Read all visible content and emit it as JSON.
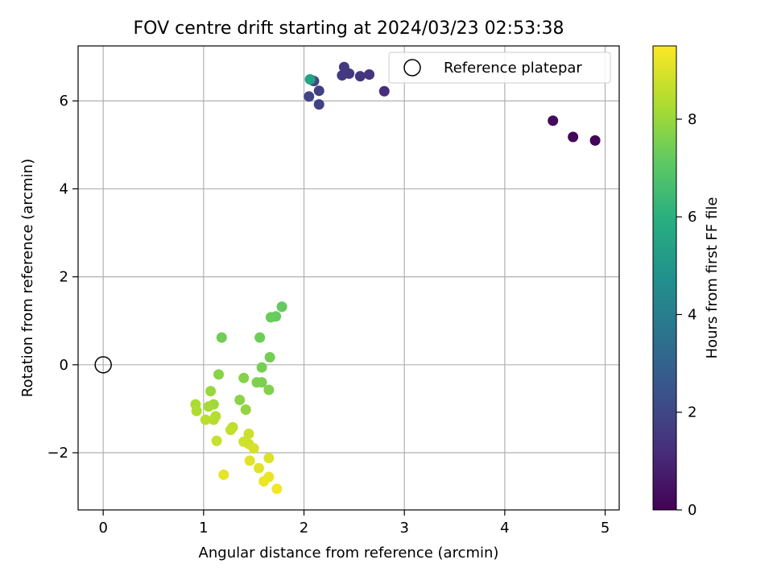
{
  "chart_data": {
    "type": "scatter",
    "title": "FOV centre drift starting at 2024/03/23 02:53:38",
    "xlabel": "Angular distance from reference (arcmin)",
    "ylabel": "Rotation from reference (arcmin)",
    "xlim": [
      -0.25,
      5.14
    ],
    "ylim": [
      -3.3,
      7.25
    ],
    "xticks": [
      0,
      1,
      2,
      3,
      4,
      5
    ],
    "yticks": [
      -2,
      0,
      2,
      4,
      6
    ],
    "grid": true,
    "legend": {
      "position": "top-right",
      "entries": [
        "Reference platepar"
      ]
    },
    "reference": {
      "x": 0,
      "y": 0
    },
    "colorbar": {
      "label": "Hours from first FF file",
      "min": 0,
      "max": 9.5,
      "ticks": [
        0,
        2,
        4,
        6,
        8
      ],
      "colormap": "viridis"
    },
    "points": [
      {
        "x": 4.9,
        "y": 5.1,
        "h": 0.05
      },
      {
        "x": 4.68,
        "y": 5.18,
        "h": 0.15
      },
      {
        "x": 4.48,
        "y": 5.55,
        "h": 0.25
      },
      {
        "x": 2.8,
        "y": 6.22,
        "h": 1.2
      },
      {
        "x": 2.65,
        "y": 6.6,
        "h": 1.4
      },
      {
        "x": 2.56,
        "y": 6.56,
        "h": 1.45
      },
      {
        "x": 2.45,
        "y": 6.62,
        "h": 1.55
      },
      {
        "x": 2.4,
        "y": 6.77,
        "h": 1.6
      },
      {
        "x": 2.38,
        "y": 6.58,
        "h": 1.65
      },
      {
        "x": 2.15,
        "y": 6.23,
        "h": 1.8
      },
      {
        "x": 2.15,
        "y": 5.92,
        "h": 1.85
      },
      {
        "x": 2.05,
        "y": 6.1,
        "h": 1.9
      },
      {
        "x": 2.1,
        "y": 6.45,
        "h": 1.95
      },
      {
        "x": 2.08,
        "y": 6.47,
        "h": 2.2
      },
      {
        "x": 2.06,
        "y": 6.49,
        "h": 5.5
      },
      {
        "x": 1.78,
        "y": 1.32,
        "h": 7.2
      },
      {
        "x": 1.72,
        "y": 1.1,
        "h": 7.25
      },
      {
        "x": 1.67,
        "y": 1.08,
        "h": 7.3
      },
      {
        "x": 1.18,
        "y": 0.62,
        "h": 7.4
      },
      {
        "x": 1.56,
        "y": 0.62,
        "h": 7.35
      },
      {
        "x": 1.66,
        "y": 0.17,
        "h": 7.45
      },
      {
        "x": 1.58,
        "y": -0.06,
        "h": 7.5
      },
      {
        "x": 1.58,
        "y": -0.4,
        "h": 7.55
      },
      {
        "x": 1.53,
        "y": -0.4,
        "h": 7.6
      },
      {
        "x": 1.65,
        "y": -0.57,
        "h": 7.65
      },
      {
        "x": 1.4,
        "y": -0.3,
        "h": 7.7
      },
      {
        "x": 1.15,
        "y": -0.22,
        "h": 7.75
      },
      {
        "x": 1.36,
        "y": -0.8,
        "h": 7.8
      },
      {
        "x": 1.42,
        "y": -1.02,
        "h": 7.9
      },
      {
        "x": 1.07,
        "y": -0.6,
        "h": 8.0
      },
      {
        "x": 1.1,
        "y": -0.9,
        "h": 8.1
      },
      {
        "x": 1.05,
        "y": -0.95,
        "h": 8.2
      },
      {
        "x": 0.92,
        "y": -0.9,
        "h": 8.3
      },
      {
        "x": 0.93,
        "y": -1.05,
        "h": 8.35
      },
      {
        "x": 1.12,
        "y": -1.17,
        "h": 8.4
      },
      {
        "x": 1.1,
        "y": -1.25,
        "h": 8.45
      },
      {
        "x": 1.02,
        "y": -1.25,
        "h": 8.5
      },
      {
        "x": 1.29,
        "y": -1.42,
        "h": 8.55
      },
      {
        "x": 1.27,
        "y": -1.48,
        "h": 8.6
      },
      {
        "x": 1.13,
        "y": -1.73,
        "h": 8.7
      },
      {
        "x": 1.45,
        "y": -1.57,
        "h": 8.75
      },
      {
        "x": 1.4,
        "y": -1.75,
        "h": 8.8
      },
      {
        "x": 1.45,
        "y": -1.8,
        "h": 8.85
      },
      {
        "x": 1.5,
        "y": -1.9,
        "h": 8.9
      },
      {
        "x": 1.65,
        "y": -2.12,
        "h": 9.0
      },
      {
        "x": 1.46,
        "y": -2.18,
        "h": 9.05
      },
      {
        "x": 1.55,
        "y": -2.35,
        "h": 9.1
      },
      {
        "x": 1.2,
        "y": -2.5,
        "h": 9.15
      },
      {
        "x": 1.65,
        "y": -2.55,
        "h": 9.2
      },
      {
        "x": 1.6,
        "y": -2.65,
        "h": 9.25
      },
      {
        "x": 1.73,
        "y": -2.82,
        "h": 9.35
      }
    ]
  }
}
